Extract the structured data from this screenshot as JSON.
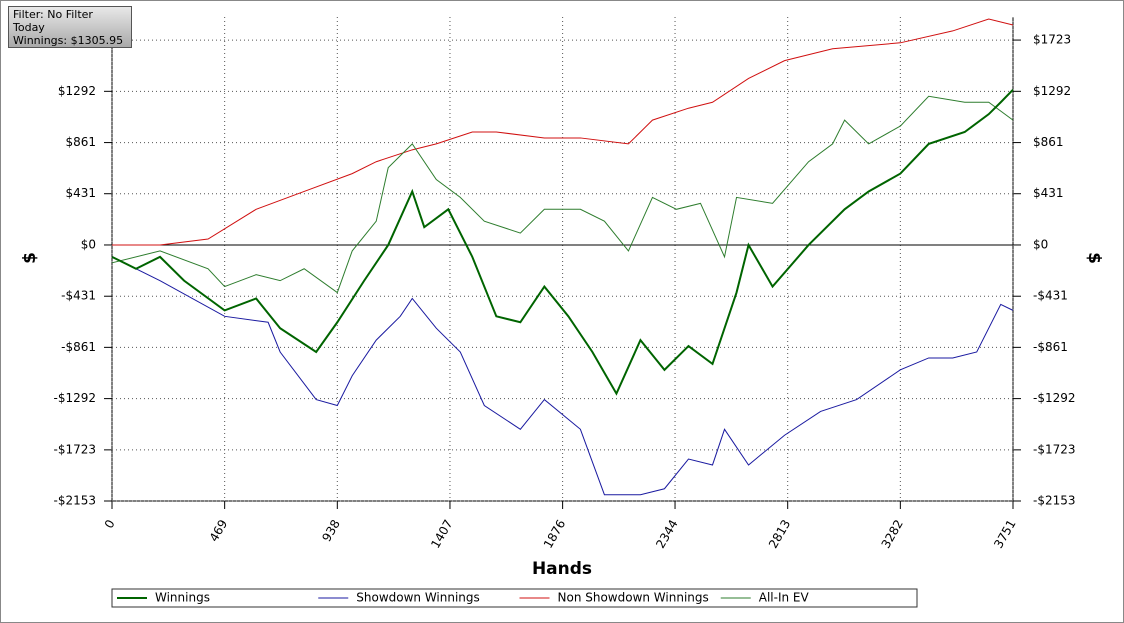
{
  "chart_data": {
    "type": "line",
    "info": [
      "Filter: No Filter",
      "Today",
      "Winnings: $1305.95"
    ],
    "xlabel": "Hands",
    "ylabel": "$",
    "y2label": "$",
    "xlim": [
      0,
      3751
    ],
    "xticks": [
      0,
      469,
      938,
      1407,
      1876,
      2344,
      2813,
      3282,
      3751
    ],
    "ylim": [
      -2153,
      1917
    ],
    "yticks": [
      {
        "value": -2153,
        "label": "-$2153"
      },
      {
        "value": -1723,
        "label": "-$1723"
      },
      {
        "value": -1292,
        "label": "-$1292"
      },
      {
        "value": -861,
        "label": "-$861"
      },
      {
        "value": -431,
        "label": "-$431"
      },
      {
        "value": 0,
        "label": "$0"
      },
      {
        "value": 431,
        "label": "$431"
      },
      {
        "value": 861,
        "label": "$861"
      },
      {
        "value": 1292,
        "label": "$1292"
      },
      {
        "value": 1723,
        "label": "$1723"
      }
    ],
    "grid": true,
    "series": [
      {
        "name": "Winnings",
        "color": "#006400",
        "x": [
          0,
          100,
          200,
          300,
          469,
          600,
          700,
          850,
          938,
          1050,
          1150,
          1250,
          1300,
          1400,
          1500,
          1600,
          1700,
          1800,
          1900,
          2000,
          2100,
          2200,
          2300,
          2400,
          2500,
          2600,
          2650,
          2750,
          2900,
          3050,
          3150,
          3282,
          3400,
          3550,
          3650,
          3700,
          3751
        ],
        "values": [
          -100,
          -200,
          -100,
          -300,
          -550,
          -450,
          -700,
          -900,
          -650,
          -300,
          0,
          450,
          150,
          300,
          -100,
          -600,
          -650,
          -350,
          -600,
          -900,
          -1250,
          -800,
          -1050,
          -850,
          -1000,
          -400,
          0,
          -350,
          0,
          300,
          450,
          600,
          850,
          950,
          1100,
          1200,
          1306
        ]
      },
      {
        "name": "Showdown Winnings",
        "color": "#1a1aa0",
        "x": [
          0,
          200,
          469,
          650,
          700,
          850,
          938,
          1000,
          1100,
          1200,
          1250,
          1350,
          1450,
          1550,
          1700,
          1800,
          1950,
          2050,
          2200,
          2300,
          2400,
          2500,
          2550,
          2650,
          2800,
          2950,
          3100,
          3282,
          3400,
          3500,
          3600,
          3700,
          3751
        ],
        "values": [
          -100,
          -300,
          -600,
          -650,
          -900,
          -1300,
          -1350,
          -1100,
          -800,
          -600,
          -450,
          -700,
          -900,
          -1350,
          -1550,
          -1300,
          -1550,
          -2100,
          -2100,
          -2050,
          -1800,
          -1850,
          -1550,
          -1850,
          -1600,
          -1400,
          -1300,
          -1050,
          -950,
          -950,
          -900,
          -500,
          -550
        ]
      },
      {
        "name": "Non Showdown Winnings",
        "color": "#d01010",
        "x": [
          0,
          200,
          400,
          600,
          800,
          1000,
          1100,
          1250,
          1350,
          1500,
          1600,
          1800,
          1950,
          2150,
          2250,
          2400,
          2500,
          2650,
          2800,
          3000,
          3282,
          3500,
          3650,
          3751
        ],
        "values": [
          0,
          0,
          50,
          300,
          450,
          600,
          700,
          800,
          850,
          950,
          950,
          900,
          900,
          850,
          1050,
          1150,
          1200,
          1400,
          1550,
          1650,
          1700,
          1800,
          1900,
          1850
        ]
      },
      {
        "name": "All-In EV",
        "color": "#2e7d2e",
        "x": [
          0,
          200,
          400,
          469,
          600,
          700,
          800,
          938,
          1000,
          1100,
          1150,
          1250,
          1350,
          1450,
          1550,
          1700,
          1800,
          1950,
          2050,
          2150,
          2250,
          2350,
          2450,
          2550,
          2600,
          2750,
          2900,
          3000,
          3050,
          3150,
          3282,
          3400,
          3550,
          3650,
          3751
        ],
        "values": [
          -150,
          -50,
          -200,
          -350,
          -250,
          -300,
          -200,
          -400,
          -50,
          200,
          650,
          850,
          550,
          400,
          200,
          100,
          300,
          300,
          200,
          -50,
          400,
          300,
          350,
          -100,
          400,
          350,
          700,
          850,
          1050,
          850,
          1000,
          1250,
          1200,
          1200,
          1050
        ]
      }
    ]
  }
}
